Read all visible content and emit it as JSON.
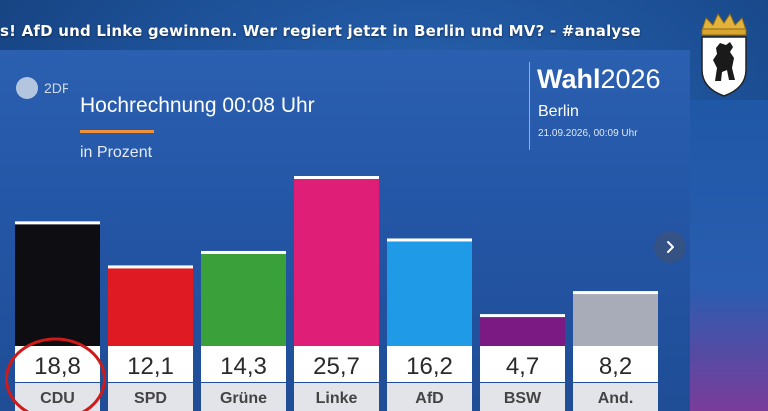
{
  "headline": "s! AfD und Linke gewinnen. Wer regiert jetzt in Berlin und MV? - #analyse",
  "broadcaster": {
    "logo_text": "2DF"
  },
  "graphic": {
    "title": "Hochrechnung 00:08 Uhr",
    "subtitle": "in Prozent",
    "brand_bold": "Wahl",
    "brand_year": "2026",
    "city": "Berlin",
    "timestamp": "21.09.2026, 00:09 Uhr"
  },
  "icons": {
    "next": "chevron-right-icon",
    "crest": "berlin-bear-crest-icon",
    "logo": "zdf-logo-icon"
  },
  "colors": {
    "accent": "#f0913a",
    "parties": [
      "#0d0d12",
      "#e01a22",
      "#3aa13a",
      "#df1e77",
      "#1f9ae6",
      "#7b1a82",
      "#a7acb8"
    ]
  },
  "chart_data": {
    "type": "bar",
    "title": "Hochrechnung 00:08 Uhr",
    "subtitle": "in Prozent",
    "categories": [
      "CDU",
      "SPD",
      "Grüne",
      "Linke",
      "AfD",
      "BSW",
      "And."
    ],
    "values": [
      18.8,
      12.1,
      14.3,
      25.7,
      16.2,
      4.7,
      8.2
    ],
    "value_labels": [
      "18,8",
      "12,1",
      "14,3",
      "25,7",
      "16,2",
      "4,7",
      "8,2"
    ],
    "highlighted": "CDU",
    "grid": false,
    "ylim": [
      0,
      25.7
    ]
  }
}
